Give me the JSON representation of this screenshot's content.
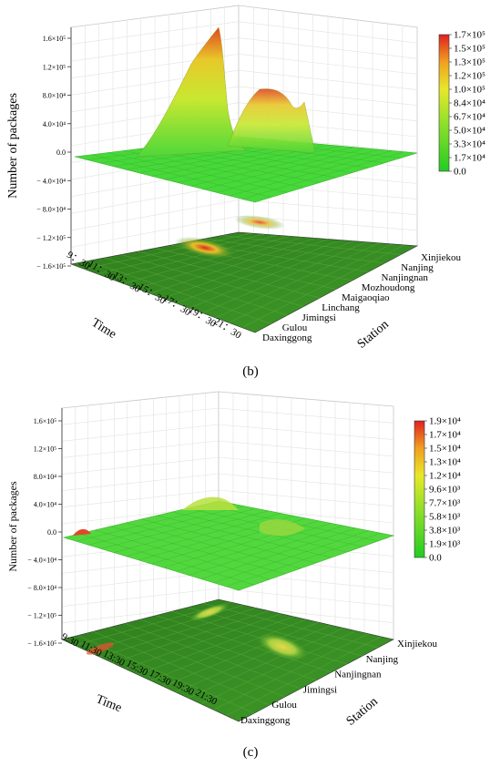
{
  "chart_data": [
    {
      "type": "surface3d",
      "panel_label": "(b)",
      "zlabel": "Number of packages",
      "xlabel": "Time",
      "ylabel": "Station",
      "z_ticks": [
        "1.6×10⁵",
        "1.2×10⁵",
        "8.0×10⁴",
        "4.0×10⁴",
        "0.0",
        "− 4.0×10⁴",
        "− 8.0×10⁴",
        "− 1.2×10⁵",
        "− 1.6×10⁵"
      ],
      "zlim": [
        -160000,
        170000
      ],
      "time_ticks": [
        "9：30",
        "11：30",
        "13：30",
        "15：30",
        "17：30",
        "19：30",
        "21：30"
      ],
      "station_ticks": [
        "Daxinggong",
        "Gulou",
        "Jimingsi",
        "Linchang",
        "Maigaoqiao",
        "Mozhoudong",
        "Nanjingnan",
        "Nanjing",
        "Xinjiekou"
      ],
      "colorbar_ticks": [
        "1.7×10⁵",
        "1.5×10⁵",
        "1.3×10⁵",
        "1.2×10⁵",
        "1.0×10⁵",
        "8.4×10⁴",
        "6.7×10⁴",
        "5.0×10⁴",
        "3.3×10⁴",
        "1.7×10⁴",
        "0.0"
      ],
      "colorbar_range": [
        0,
        170000
      ],
      "peaks": [
        {
          "time": "11：30",
          "station": "Nanjingnan",
          "value": 168000
        },
        {
          "time": "13：30",
          "station": "Nanjing",
          "value": 110000
        },
        {
          "time": "15：30",
          "station": "Jimingsi",
          "value": 100000
        }
      ],
      "colors": {
        "low": "#2ecc2e",
        "mid": "#e6e62a",
        "high": "#e03020",
        "floor": "#3a8a22"
      }
    },
    {
      "type": "surface3d",
      "panel_label": "(c)",
      "zlabel": "Number of packages",
      "xlabel": "Time",
      "ylabel": "Station",
      "z_ticks": [
        "1.6×10⁵",
        "1.2×10⁵",
        "8.0×10⁴",
        "4.0×10⁴",
        "0.0",
        "− 4.0×10⁴",
        "− 8.0×10⁴",
        "− 1.2×10⁵",
        "− 1.6×10⁵"
      ],
      "zlim": [
        -160000,
        170000
      ],
      "time_ticks": [
        "9:30",
        "11:30",
        "13:30",
        "15:30",
        "17:30",
        "19:30",
        "21:30"
      ],
      "station_ticks": [
        "Daxinggong",
        "Gulou",
        "Jimingsi",
        "Nanjingnan",
        "Nanjing",
        "Xinjiekou"
      ],
      "colorbar_ticks": [
        "1.9×10⁴",
        "1.7×10⁴",
        "1.5×10⁴",
        "1.3×10⁴",
        "1.2×10⁴",
        "9.6×10³",
        "7.7×10³",
        "5.8×10³",
        "3.8×10³",
        "1.9×10³",
        "0.0"
      ],
      "colorbar_range": [
        0,
        19000
      ],
      "colors": {
        "low": "#2ecc2e",
        "mid": "#e6e62a",
        "high": "#e03020",
        "floor": "#3a8a22"
      }
    }
  ]
}
